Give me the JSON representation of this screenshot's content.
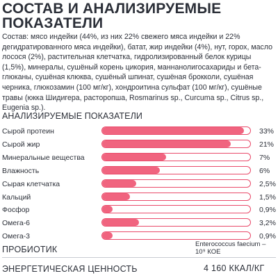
{
  "title": "СОСТАВ И АНАЛИЗИРУЕМЫЕ ПОКАЗАТЕЛИ",
  "composition_text": "Состав: мясо индейки (44%, из них 22% свежего мяса индейки и 22% дегидратированного мяса индейки), батат, жир индейки (4%), нут, горох, масло лосося (2%), растительная клетчатка, гидролизированный белок курицы (1,5%), минералы, сушёный корень цикория, маннанолигосахариды и бета-глюканы, сушёная клюква, сушёный шпинат, сушёная брокколи, сушёная черника, глюкозамин (100 мг/кг), хондроитина сульфат (100 мг/кг), сушёные травы (юкка Шидигера, расторопша, Rosmarinus sp., Curcuma sp., Citrus sp., Eugenia sp.).",
  "analysis_heading": "АНАЛИЗИРУЕМЫЕ ПОКАЗАТЕЛИ",
  "nutrients": [
    {
      "label": "Сырой протеин",
      "value": "33%",
      "fill": 0.96
    },
    {
      "label": "Сырой жир",
      "value": "21%",
      "fill": 0.87
    },
    {
      "label": "Минеральные вещества",
      "value": "7%",
      "fill": 0.43
    },
    {
      "label": "Влажность",
      "value": "6%",
      "fill": 0.39
    },
    {
      "label": "Сырая клетчатка",
      "value": "2,5%",
      "fill": 0.23
    },
    {
      "label": "Кальций",
      "value": "1,5%",
      "fill": 0.19
    },
    {
      "label": "Фосфор",
      "value": "0,9%",
      "fill": 0.07
    },
    {
      "label": "Омега-6",
      "value": "3,2%",
      "fill": 0.25
    },
    {
      "label": "Омега-3",
      "value": "0,9%",
      "fill": 0.07
    }
  ],
  "probiotic": {
    "label": "ПРОБИОТИК",
    "value": "Enterococcus faecium – 10⁹ КОЕ"
  },
  "energy": {
    "label": "ЭНЕРГЕТИЧЕСКАЯ ЦЕННОСТЬ",
    "value": "4 160 ККАЛ/КГ"
  },
  "colors": {
    "bar_fill": "#f0647f",
    "bar_border": "#e94a6a",
    "text": "#2b2f38"
  }
}
